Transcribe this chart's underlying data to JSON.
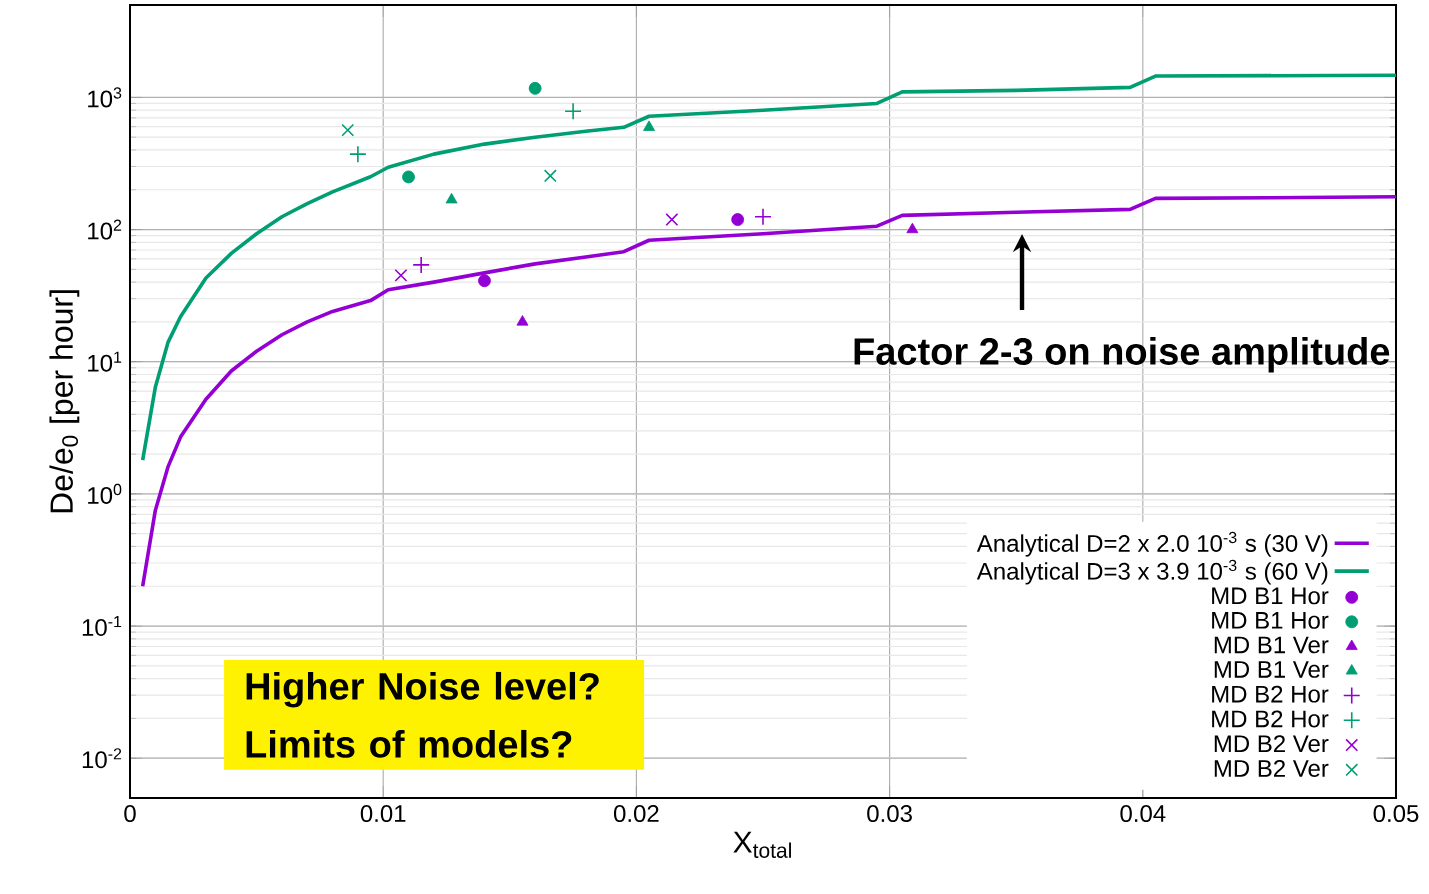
{
  "chart_data": {
    "type": "scatter",
    "xlabel": "X$_{total}$",
    "ylabel": "De/e$_{0}$ [per hour]",
    "xlim": [
      0,
      0.05
    ],
    "ylim": [
      0.005,
      5000
    ],
    "log": "y",
    "grid": true,
    "legend": "bottom right",
    "xticks": [
      0,
      0.01,
      0.02,
      0.03,
      0.04,
      0.05
    ],
    "yticks": [
      {
        "value": 0.01,
        "label": "10$^{-2}$"
      },
      {
        "value": 0.1,
        "label": "10$^{-1}$"
      },
      {
        "value": 1,
        "label": "10$^{0}$"
      },
      {
        "value": 10,
        "label": "10$^{1}$"
      },
      {
        "value": 100,
        "label": "10$^{2}$"
      },
      {
        "value": 1000,
        "label": "10$^{3}$"
      }
    ],
    "annotations": [
      "Factor 2-3 on noise amplitude",
      "Higher Noise level?\nLimits of models?"
    ],
    "series": [
      {
        "name": "Analytical D=2 x 2.0 10$^{-3}$ s (30 V)",
        "type": "line",
        "color": "#9400d3",
        "marker": "none",
        "line_style": "solid",
        "x": [
          0.0005,
          0.001,
          0.0015,
          0.002,
          0.003,
          0.004,
          0.005,
          0.006,
          0.007,
          0.008,
          0.0095,
          0.0102,
          0.012,
          0.014,
          0.016,
          0.018,
          0.0195,
          0.0205,
          0.025,
          0.0295,
          0.0305,
          0.035,
          0.0395,
          0.0405,
          0.045,
          0.05
        ],
        "values": [
          0.2,
          0.75,
          1.6,
          2.7,
          5.2,
          8.5,
          12,
          16,
          20,
          24,
          29,
          35,
          40,
          47,
          55,
          62,
          68,
          83,
          93,
          106,
          128,
          135,
          142,
          172,
          174,
          177
        ]
      },
      {
        "name": "Analytical D=3 x 3.9 10$^{-3}$ s (60 V)",
        "type": "line",
        "color": "#009e73",
        "marker": "none",
        "line_style": "solid",
        "x": [
          0.0005,
          0.001,
          0.0015,
          0.002,
          0.003,
          0.004,
          0.005,
          0.006,
          0.007,
          0.008,
          0.0095,
          0.0102,
          0.012,
          0.014,
          0.016,
          0.018,
          0.0195,
          0.0205,
          0.025,
          0.0295,
          0.0305,
          0.035,
          0.0395,
          0.0405,
          0.05
        ],
        "values": [
          1.8,
          6.4,
          14,
          22,
          43,
          66,
          93,
          125,
          157,
          193,
          251,
          296,
          372,
          443,
          500,
          554,
          594,
          720,
          800,
          900,
          1100,
          1130,
          1190,
          1450,
          1470
        ]
      },
      {
        "name": "MD B1 Hor",
        "color": "#9400d3",
        "marker": "circle",
        "x": [
          0.014,
          0.024
        ],
        "values": [
          41,
          119
        ]
      },
      {
        "name": "MD B1 Hor",
        "color": "#009e73",
        "marker": "circle",
        "x": [
          0.011,
          0.016
        ],
        "values": [
          250,
          1170
        ]
      },
      {
        "name": "MD B1 Ver",
        "color": "#9400d3",
        "marker": "triangle",
        "x": [
          0.0155,
          0.0309
        ],
        "values": [
          20,
          100
        ]
      },
      {
        "name": "MD B1 Ver",
        "color": "#009e73",
        "marker": "triangle",
        "x": [
          0.0127,
          0.0205
        ],
        "values": [
          168,
          594
        ]
      },
      {
        "name": "MD B2 Hor",
        "color": "#9400d3",
        "marker": "plus",
        "x": [
          0.0115,
          0.025
        ],
        "values": [
          54,
          125
        ]
      },
      {
        "name": "MD B2 Hor",
        "color": "#009e73",
        "marker": "plus",
        "x": [
          0.009,
          0.0175
        ],
        "values": [
          372,
          785
        ]
      },
      {
        "name": "MD B2 Ver",
        "color": "#9400d3",
        "marker": "cross",
        "x": [
          0.0107,
          0.0214
        ],
        "values": [
          45,
          119
        ]
      },
      {
        "name": "MD B2 Ver",
        "color": "#009e73",
        "marker": "cross",
        "x": [
          0.0086,
          0.0166
        ],
        "values": [
          565,
          255
        ]
      }
    ]
  }
}
